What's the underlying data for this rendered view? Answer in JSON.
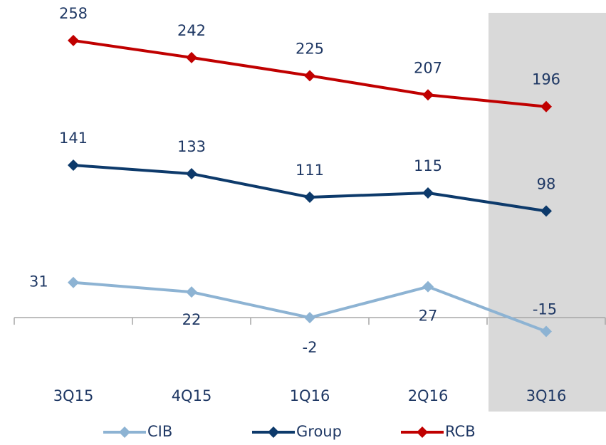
{
  "chart_data": {
    "type": "line",
    "categories": [
      "3Q15",
      "4Q15",
      "1Q16",
      "2Q16",
      "3Q16"
    ],
    "series": [
      {
        "name": "CIB",
        "color": "#8db3d3",
        "values": [
          31,
          22,
          -2,
          27,
          -15
        ]
      },
      {
        "name": "Group",
        "color": "#0d3a6b",
        "values": [
          141,
          133,
          111,
          115,
          98
        ]
      },
      {
        "name": "RCB",
        "color": "#c00000",
        "values": [
          258,
          242,
          225,
          207,
          196
        ]
      }
    ],
    "ylim": [
      -30,
      280
    ],
    "legend": "bottom"
  }
}
